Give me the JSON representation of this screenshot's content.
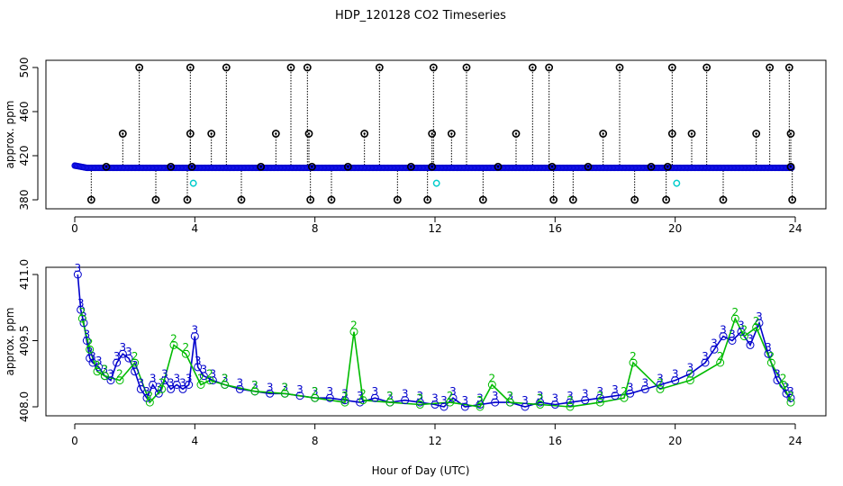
{
  "title": "HDP_120128  CO2 Timeseries",
  "xlabel": "Hour of Day (UTC)",
  "colors": {
    "series3": "#0000cc",
    "series2": "#00bb00",
    "outlier": "#000000",
    "flag": "#00cccc",
    "blue_fill": "#2222ff"
  },
  "chart_data": [
    {
      "type": "scatter",
      "panel": "top",
      "ylabel": "approx. ppm",
      "xlim": [
        0,
        24
      ],
      "ylim": [
        380,
        500
      ],
      "x_ticks": [
        "0",
        "4",
        "8",
        "12",
        "16",
        "20",
        "24"
      ],
      "y_ticks": [
        "380",
        "420",
        "460",
        "500"
      ],
      "baseline_range": [
        408.5,
        409.5
      ],
      "high_outliers": [
        {
          "x": 2.15,
          "y": 500
        },
        {
          "x": 3.85,
          "y": 500
        },
        {
          "x": 5.05,
          "y": 500
        },
        {
          "x": 7.2,
          "y": 500
        },
        {
          "x": 7.75,
          "y": 500
        },
        {
          "x": 10.15,
          "y": 500
        },
        {
          "x": 11.95,
          "y": 500
        },
        {
          "x": 13.05,
          "y": 500
        },
        {
          "x": 15.25,
          "y": 500
        },
        {
          "x": 15.8,
          "y": 500
        },
        {
          "x": 18.15,
          "y": 500
        },
        {
          "x": 19.9,
          "y": 500
        },
        {
          "x": 21.05,
          "y": 500
        },
        {
          "x": 23.15,
          "y": 500
        },
        {
          "x": 23.8,
          "y": 500
        },
        {
          "x": 1.6,
          "y": 440
        },
        {
          "x": 3.85,
          "y": 440
        },
        {
          "x": 4.55,
          "y": 440
        },
        {
          "x": 6.7,
          "y": 440
        },
        {
          "x": 7.8,
          "y": 440
        },
        {
          "x": 9.65,
          "y": 440
        },
        {
          "x": 11.9,
          "y": 440
        },
        {
          "x": 12.55,
          "y": 440
        },
        {
          "x": 14.7,
          "y": 440
        },
        {
          "x": 17.6,
          "y": 440
        },
        {
          "x": 19.9,
          "y": 440
        },
        {
          "x": 20.55,
          "y": 440
        },
        {
          "x": 22.7,
          "y": 440
        },
        {
          "x": 23.85,
          "y": 440
        }
      ],
      "low_outliers": [
        {
          "x": 0.55,
          "y": 380
        },
        {
          "x": 2.7,
          "y": 380
        },
        {
          "x": 3.75,
          "y": 380
        },
        {
          "x": 5.55,
          "y": 380
        },
        {
          "x": 7.85,
          "y": 380
        },
        {
          "x": 8.55,
          "y": 380
        },
        {
          "x": 10.75,
          "y": 380
        },
        {
          "x": 11.75,
          "y": 380
        },
        {
          "x": 13.6,
          "y": 380
        },
        {
          "x": 15.95,
          "y": 380
        },
        {
          "x": 16.6,
          "y": 380
        },
        {
          "x": 18.65,
          "y": 380
        },
        {
          "x": 19.7,
          "y": 380
        },
        {
          "x": 21.6,
          "y": 380
        },
        {
          "x": 23.9,
          "y": 380
        }
      ],
      "mid_outliers": [
        {
          "x": 1.05,
          "y": 410
        },
        {
          "x": 3.2,
          "y": 410
        },
        {
          "x": 3.9,
          "y": 410
        },
        {
          "x": 6.2,
          "y": 410
        },
        {
          "x": 7.9,
          "y": 410
        },
        {
          "x": 9.1,
          "y": 410
        },
        {
          "x": 11.2,
          "y": 410
        },
        {
          "x": 11.9,
          "y": 410
        },
        {
          "x": 14.1,
          "y": 410
        },
        {
          "x": 15.9,
          "y": 410
        },
        {
          "x": 17.1,
          "y": 410
        },
        {
          "x": 19.2,
          "y": 410
        },
        {
          "x": 19.75,
          "y": 410
        },
        {
          "x": 23.85,
          "y": 410
        }
      ],
      "flagged_points": [
        {
          "x": 3.95,
          "y": 395
        },
        {
          "x": 12.05,
          "y": 395
        },
        {
          "x": 20.05,
          "y": 395
        }
      ]
    },
    {
      "type": "line",
      "panel": "bottom",
      "ylabel": "approx. ppm",
      "xlim": [
        0,
        24
      ],
      "ylim": [
        408.0,
        411.0
      ],
      "x_ticks": [
        "0",
        "4",
        "8",
        "12",
        "16",
        "20",
        "24"
      ],
      "y_ticks": [
        "408.0",
        "409.5",
        "411.0"
      ],
      "series": [
        {
          "name": "3",
          "x": [
            0.1,
            0.2,
            0.3,
            0.4,
            0.5,
            0.6,
            0.8,
            1.0,
            1.2,
            1.4,
            1.6,
            1.8,
            2.0,
            2.2,
            2.4,
            2.6,
            2.8,
            3.0,
            3.2,
            3.4,
            3.6,
            3.8,
            4.0,
            4.1,
            4.3,
            4.6,
            5.0,
            5.5,
            6.0,
            6.5,
            7.0,
            7.5,
            8.0,
            8.5,
            9.0,
            9.5,
            10.0,
            10.5,
            11.0,
            11.5,
            12.0,
            12.3,
            12.6,
            13.0,
            13.5,
            14.0,
            14.5,
            15.0,
            15.5,
            16.0,
            16.5,
            17.0,
            17.5,
            18.0,
            18.5,
            19.0,
            19.5,
            20.0,
            20.5,
            21.0,
            21.3,
            21.6,
            21.9,
            22.2,
            22.5,
            22.8,
            23.1,
            23.4,
            23.7,
            23.85
          ],
          "values": [
            411.0,
            410.2,
            409.9,
            409.5,
            409.1,
            409.0,
            408.9,
            408.7,
            408.6,
            409.0,
            409.2,
            409.1,
            408.8,
            408.4,
            408.2,
            408.5,
            408.3,
            408.6,
            408.4,
            408.5,
            408.4,
            408.5,
            409.6,
            408.9,
            408.7,
            408.6,
            408.5,
            408.4,
            408.35,
            408.3,
            408.3,
            408.25,
            408.2,
            408.2,
            408.15,
            408.1,
            408.2,
            408.1,
            408.15,
            408.1,
            408.05,
            408.0,
            408.2,
            408.0,
            408.05,
            408.1,
            408.1,
            408.0,
            408.1,
            408.05,
            408.1,
            408.15,
            408.2,
            408.25,
            408.3,
            408.4,
            408.5,
            408.6,
            408.75,
            409.0,
            409.3,
            409.6,
            409.5,
            409.7,
            409.4,
            409.9,
            409.2,
            408.6,
            408.3,
            408.2
          ]
        },
        {
          "name": "2",
          "x": [
            0.25,
            0.5,
            0.75,
            1.0,
            1.5,
            2.0,
            2.5,
            2.9,
            3.3,
            3.7,
            4.2,
            4.5,
            5.0,
            6.0,
            7.0,
            8.0,
            9.0,
            9.3,
            9.6,
            10.5,
            11.5,
            12.5,
            13.5,
            13.9,
            14.5,
            15.5,
            16.5,
            17.5,
            18.3,
            18.6,
            19.5,
            20.5,
            21.5,
            22.0,
            22.3,
            22.7,
            23.2,
            23.6,
            23.85
          ],
          "values": [
            410.0,
            409.3,
            408.8,
            408.7,
            408.6,
            409.0,
            408.1,
            408.4,
            409.4,
            409.2,
            408.5,
            408.6,
            408.5,
            408.35,
            408.3,
            408.2,
            408.1,
            409.7,
            408.15,
            408.1,
            408.05,
            408.1,
            408.0,
            408.5,
            408.1,
            408.05,
            408.0,
            408.1,
            408.2,
            409.0,
            408.4,
            408.6,
            409.0,
            410.0,
            409.6,
            409.8,
            409.0,
            408.5,
            408.1
          ]
        }
      ]
    }
  ]
}
